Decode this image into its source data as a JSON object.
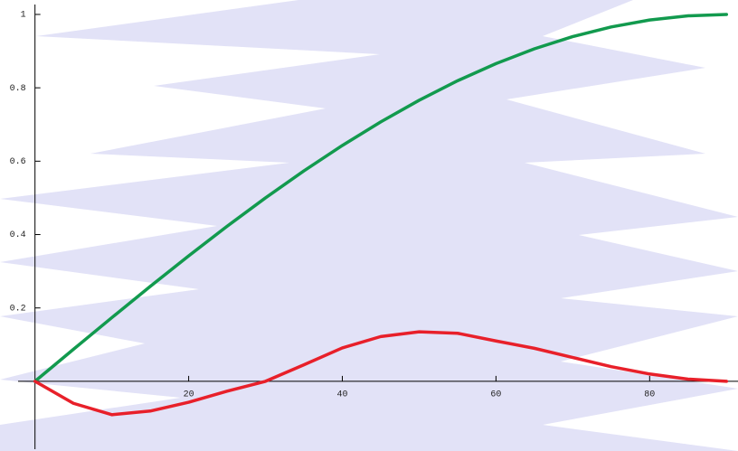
{
  "chart_data": {
    "type": "line",
    "x": [
      0,
      5,
      10,
      15,
      20,
      25,
      30,
      35,
      40,
      45,
      50,
      55,
      60,
      65,
      70,
      75,
      80,
      85,
      90
    ],
    "series": [
      {
        "color": "#129a4e",
        "values": [
          0,
          0.0872,
          0.1736,
          0.2588,
          0.342,
          0.4226,
          0.5,
          0.5736,
          0.6428,
          0.7071,
          0.766,
          0.8192,
          0.866,
          0.9063,
          0.9397,
          0.9659,
          0.9848,
          0.9962,
          1
        ]
      },
      {
        "color": "#e8202a",
        "values": [
          0,
          -0.06,
          -0.091,
          -0.081,
          -0.057,
          -0.027,
          0,
          0.045,
          0.091,
          0.122,
          0.135,
          0.131,
          0.11,
          0.09,
          0.065,
          0.04,
          0.02,
          0.006,
          0
        ]
      }
    ],
    "xlim": [
      -2.2,
      91.5
    ],
    "ylim": [
      -0.185,
      1.027
    ],
    "xticks": [
      20,
      40,
      60,
      80
    ],
    "yticks": [
      0.2,
      0.4,
      0.6,
      0.8,
      1
    ]
  }
}
